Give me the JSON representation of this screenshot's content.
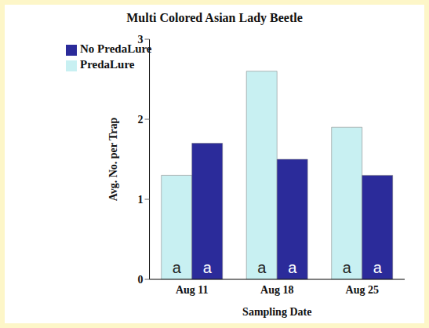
{
  "chart_data": {
    "type": "bar",
    "title": "Multi Colored Asian Lady Beetle",
    "x_label": "Sampling Date",
    "y_label": "Avg. No. per Trap",
    "categories": [
      "Aug 11",
      "Aug 18",
      "Aug 25"
    ],
    "series": [
      {
        "name": "PredaLure",
        "color": "#c8f0f2",
        "values": [
          1.3,
          2.6,
          1.9
        ],
        "letters": [
          "a",
          "a",
          "a"
        ]
      },
      {
        "name": "No PredaLure",
        "color": "#2b2b9a",
        "values": [
          1.7,
          1.5,
          1.3
        ],
        "letters": [
          "a",
          "a",
          "a"
        ]
      }
    ],
    "ylim": [
      0,
      3
    ],
    "yticks": [
      0,
      1,
      2,
      3
    ],
    "grid": false,
    "legend": "upper left"
  }
}
